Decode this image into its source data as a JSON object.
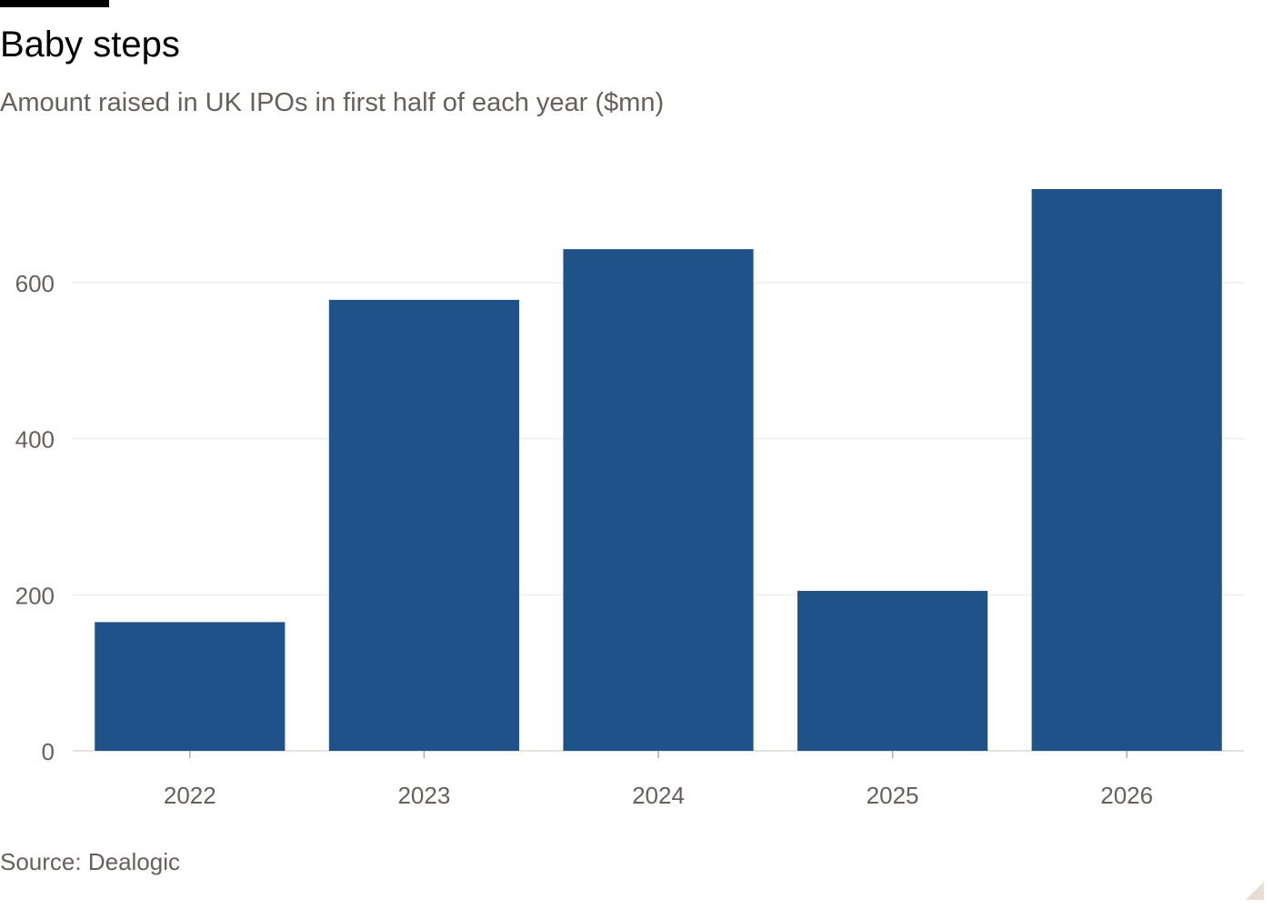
{
  "header": {
    "title": "Baby steps",
    "subtitle": "Amount raised in UK IPOs in first half of each year ($mn)"
  },
  "footer": {
    "source": "Source: Dealogic"
  },
  "chart_data": {
    "type": "bar",
    "title": "Baby steps",
    "subtitle": "Amount raised in UK IPOs in first half of each year ($mn)",
    "xlabel": "",
    "ylabel": "",
    "categories": [
      "2022",
      "2023",
      "2024",
      "2025",
      "2026"
    ],
    "values": [
      165,
      578,
      643,
      205,
      720
    ],
    "ylim": [
      0,
      720
    ],
    "yticks": [
      0,
      200,
      400,
      600
    ],
    "grid": true,
    "legend": "none",
    "bar_color": "#1f5289"
  }
}
